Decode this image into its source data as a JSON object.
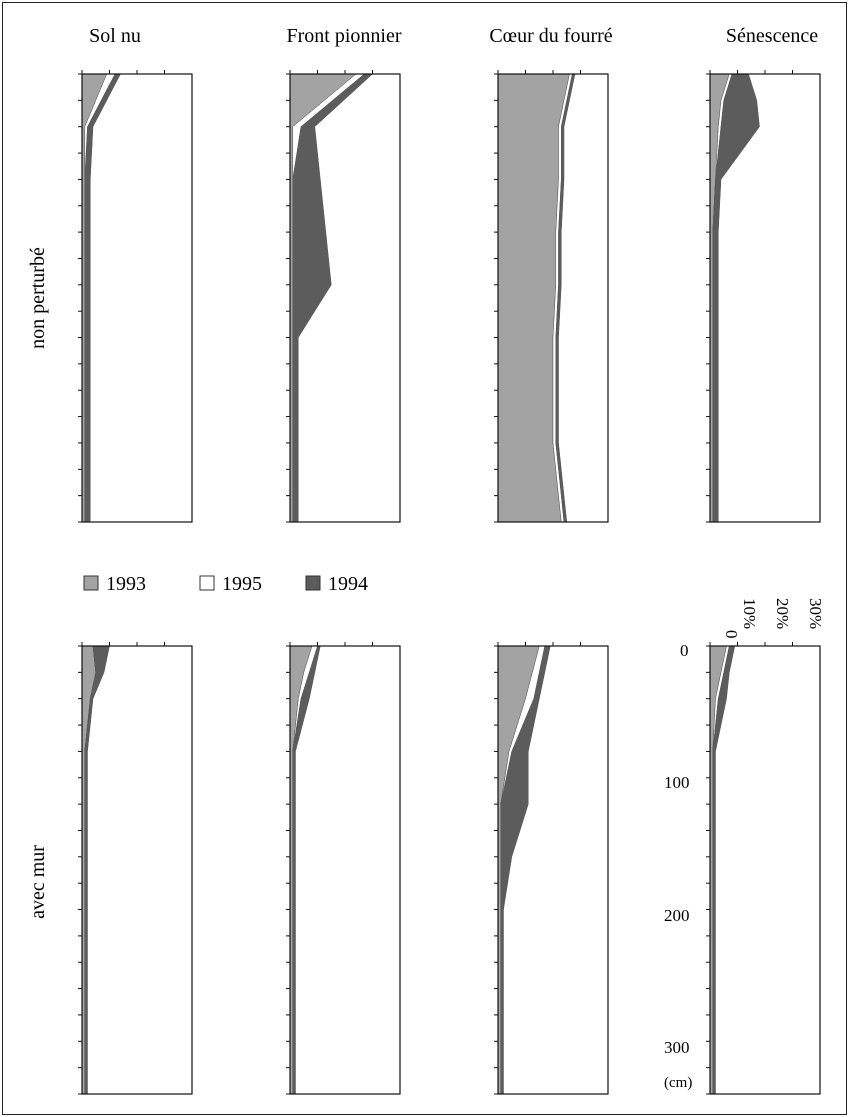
{
  "figure": {
    "column_titles": [
      "Sol nu",
      "Front pionnier",
      "Cœur du fourré",
      "Sénescence"
    ],
    "row_labels": [
      "non perturbé",
      "avec mur"
    ]
  },
  "legend": [
    {
      "label": "1993",
      "color": "#a3a3a3"
    },
    {
      "label": "1995",
      "color": "#ffffff"
    },
    {
      "label": "1994",
      "color": "#5c5c5c"
    }
  ],
  "axis": {
    "x_tick_labels": [
      "0",
      "10%",
      "20%",
      "30%"
    ],
    "y_tick_labels": [
      "0",
      "100",
      "200",
      "300"
    ],
    "y_unit": "(cm)"
  },
  "chart_data": {
    "type": "area",
    "layout": "small multiples, 2 rows x 4 columns, stacked areas",
    "x_axis": "percentage",
    "xlim": [
      0,
      40
    ],
    "y_axis": "depth",
    "ylim": [
      0,
      340
    ],
    "y_inverted": true,
    "series_order": [
      "1993",
      "1995",
      "1994"
    ],
    "series_colors": {
      "1993": "#a3a3a3",
      "1995": "#ffffff",
      "1994": "#5c5c5c"
    },
    "panels": [
      {
        "row": "non perturbé",
        "column": "Sol nu",
        "depth": [
          0,
          40,
          80,
          120,
          160,
          200,
          240,
          280,
          320,
          340
        ],
        "values": {
          "1993": [
            9,
            1,
            1,
            1,
            1,
            1,
            1,
            1,
            1,
            1
          ],
          "1995": [
            3,
            1,
            0,
            0,
            0,
            0,
            0,
            0,
            0,
            0
          ],
          "1994": [
            2,
            2,
            2,
            2,
            2,
            2,
            2,
            2,
            2,
            2
          ]
        }
      },
      {
        "row": "non perturbé",
        "column": "Front pionnier",
        "depth": [
          0,
          40,
          80,
          120,
          160,
          200,
          240,
          280,
          320,
          340
        ],
        "values": {
          "1993": [
            24,
            1,
            1,
            1,
            1,
            1,
            1,
            1,
            1,
            1
          ],
          "1995": [
            3,
            3,
            0,
            0,
            0,
            0,
            0,
            0,
            0,
            0
          ],
          "1994": [
            3,
            5,
            10,
            12,
            14,
            2,
            2,
            2,
            2,
            2
          ]
        }
      },
      {
        "row": "non perturbé",
        "column": "Cœur du fourré",
        "depth": [
          0,
          40,
          80,
          120,
          160,
          200,
          240,
          280,
          320,
          340
        ],
        "values": {
          "1993": [
            26,
            22,
            22,
            21,
            21,
            20,
            20,
            20,
            22,
            23
          ],
          "1995": [
            1,
            1,
            1,
            1,
            1,
            1,
            1,
            1,
            1,
            1
          ],
          "1994": [
            1,
            1,
            1,
            1,
            1,
            1,
            1,
            1,
            1,
            1
          ]
        }
      },
      {
        "row": "non perturbé",
        "column": "Sénescence",
        "depth": [
          0,
          20,
          40,
          80,
          120,
          160,
          200,
          240,
          280,
          320,
          340
        ],
        "values": {
          "1993": [
            7,
            4,
            3,
            2,
            1,
            1,
            1,
            1,
            1,
            1,
            1
          ],
          "1995": [
            1,
            1,
            1,
            0,
            0,
            0,
            0,
            0,
            0,
            0,
            0
          ],
          "1994": [
            6,
            12,
            14,
            2,
            2,
            2,
            2,
            2,
            2,
            2,
            2
          ]
        }
      },
      {
        "row": "avec mur",
        "column": "Sol nu",
        "depth": [
          0,
          20,
          40,
          80,
          120,
          160,
          200,
          240,
          280,
          320,
          340
        ],
        "values": {
          "1993": [
            4,
            5,
            3,
            1,
            1,
            1,
            1,
            1,
            1,
            1,
            1
          ],
          "1995": [
            0,
            0,
            0,
            0,
            0,
            0,
            0,
            0,
            0,
            0,
            0
          ],
          "1994": [
            6,
            3,
            1,
            1,
            1,
            1,
            1,
            1,
            1,
            1,
            1
          ]
        }
      },
      {
        "row": "avec mur",
        "column": "Front pionnier",
        "depth": [
          0,
          20,
          40,
          80,
          120,
          160,
          200,
          240,
          280,
          320,
          340
        ],
        "values": {
          "1993": [
            8,
            5,
            3,
            1,
            1,
            1,
            1,
            1,
            1,
            1,
            1
          ],
          "1995": [
            2,
            2,
            1,
            0,
            0,
            0,
            0,
            0,
            0,
            0,
            0
          ],
          "1994": [
            1,
            2,
            3,
            1,
            1,
            1,
            1,
            1,
            1,
            1,
            1
          ]
        }
      },
      {
        "row": "avec mur",
        "column": "Cœur du fourré",
        "depth": [
          0,
          40,
          80,
          120,
          160,
          200,
          240,
          280,
          320,
          340
        ],
        "values": {
          "1993": [
            15,
            10,
            4,
            1,
            1,
            1,
            1,
            1,
            1,
            1
          ],
          "1995": [
            2,
            3,
            1,
            0,
            0,
            0,
            0,
            0,
            0,
            0
          ],
          "1994": [
            2,
            2,
            6,
            10,
            4,
            1,
            1,
            1,
            1,
            1
          ]
        }
      },
      {
        "row": "avec mur",
        "column": "Sénescence",
        "depth": [
          0,
          20,
          40,
          80,
          120,
          160,
          200,
          240,
          280,
          320,
          340
        ],
        "values": {
          "1993": [
            6,
            4,
            2,
            1,
            1,
            1,
            1,
            1,
            1,
            1,
            1
          ],
          "1995": [
            1,
            1,
            1,
            0,
            0,
            0,
            0,
            0,
            0,
            0,
            0
          ],
          "1994": [
            2,
            2,
            3,
            1,
            1,
            1,
            1,
            1,
            1,
            1,
            1
          ]
        }
      }
    ]
  }
}
